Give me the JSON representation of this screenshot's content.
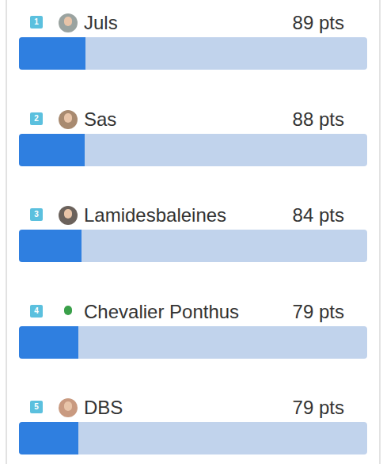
{
  "chart_data": {
    "type": "bar",
    "orientation": "horizontal",
    "categories": [
      "Juls",
      "Sas",
      "Lamidesbaleines",
      "Chevalier Ponthus",
      "DBS"
    ],
    "ranks": [
      1,
      2,
      3,
      4,
      5
    ],
    "values": [
      89,
      88,
      84,
      79,
      79
    ],
    "value_labels": [
      "89 pts",
      "88 pts",
      "84 pts",
      "79 pts",
      "79 pts"
    ],
    "xlim": [
      0,
      466
    ],
    "color": "#2f7fe0",
    "data_labels": true,
    "tick_labels": false,
    "grid": false
  }
}
